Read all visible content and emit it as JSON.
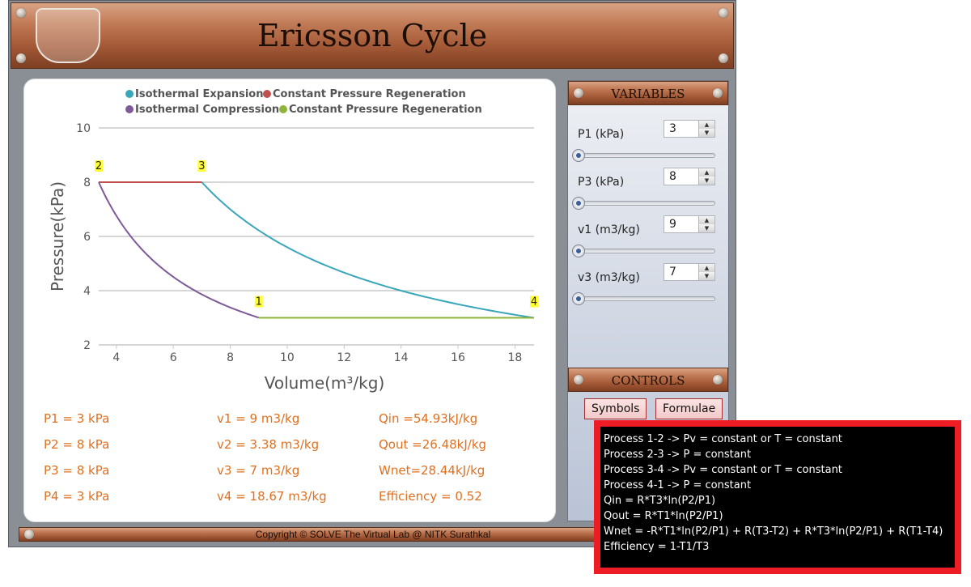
{
  "header": {
    "title": "Ericsson Cycle"
  },
  "chart_data": {
    "type": "line",
    "xlabel": "Volume(m³/kg)",
    "ylabel": "Pressure(kPa)",
    "xlim": [
      3.38,
      18.67
    ],
    "ylim": [
      2,
      10
    ],
    "x_ticks": [
      "4",
      "6",
      "8",
      "10",
      "12",
      "14",
      "16",
      "18"
    ],
    "y_ticks": [
      "2",
      "4",
      "6",
      "8",
      "10"
    ],
    "grid": "horizontal",
    "legend_position": "top",
    "series": [
      {
        "name": "Isothermal Expansion",
        "color": "#3aa6b9",
        "curve": "isotherm",
        "points": [
          [
            7,
            8
          ],
          [
            18.67,
            3
          ]
        ]
      },
      {
        "name": "Constant Pressure Regeneration",
        "color": "#c0504d",
        "curve": "line",
        "points": [
          [
            3.38,
            8
          ],
          [
            7,
            8
          ]
        ]
      },
      {
        "name": "Isothermal Compression",
        "color": "#7e5a99",
        "curve": "isotherm",
        "points": [
          [
            3.38,
            8
          ],
          [
            9,
            3
          ]
        ]
      },
      {
        "name": "Constant Pressure Regeneration",
        "color": "#8db53a",
        "curve": "line",
        "points": [
          [
            9,
            3
          ],
          [
            18.67,
            3
          ]
        ]
      }
    ],
    "point_labels": [
      {
        "text": "1",
        "x": 9,
        "y": 3
      },
      {
        "text": "2",
        "x": 3.38,
        "y": 8
      },
      {
        "text": "3",
        "x": 7,
        "y": 8
      },
      {
        "text": "4",
        "x": 18.67,
        "y": 3
      }
    ]
  },
  "results": {
    "p1": "P1 = 3 kPa",
    "p2": "P2 = 8 kPa",
    "p3": "P3 = 8 kPa",
    "p4": "P4 = 3 kPa",
    "v1": "v1 = 9 m3/kg",
    "v2": "v2 = 3.38 m3/kg",
    "v3": "v3 = 7 m3/kg",
    "v4": "v4 = 18.67 m3/kg",
    "qin": "Qin =54.93kJ/kg",
    "qout": "Qout =26.48kJ/kg",
    "wnet": "Wnet=28.44kJ/kg",
    "efficiency": "Efficiency = 0.52"
  },
  "variables": {
    "heading": "VARIABLES",
    "items": [
      {
        "label": "P1 (kPa)",
        "value": "3",
        "slider_fraction": 0
      },
      {
        "label": "P3 (kPa)",
        "value": "8",
        "slider_fraction": 0
      },
      {
        "label": "v1 (m3/kg)",
        "value": "9",
        "slider_fraction": 0
      },
      {
        "label": "v3 (m3/kg)",
        "value": "7",
        "slider_fraction": 0
      }
    ]
  },
  "controls": {
    "heading": "CONTROLS",
    "symbols_label": "Symbols",
    "formulae_label": "Formulae"
  },
  "footer": {
    "copyright": "Copyright © SOLVE The Virtual Lab @ NITK Surathkal"
  },
  "formulae": {
    "lines": [
      "Process 1-2 -> Pv = constant or T = constant",
      "Process 2-3 -> P = constant",
      "Process 3-4 -> Pv = constant or T = constant",
      "Process 4-1 -> P = constant",
      "Qin = R*T3*ln(P2/P1)",
      "Qout = R*T1*ln(P2/P1)",
      "Wnet = -R*T1*ln(P2/P1) + R(T3-T2) + R*T3*ln(P2/P1) + R(T1-T4)",
      "Efficiency = 1-T1/T3"
    ]
  },
  "colors": {
    "result_text": "#e07020",
    "popup_border": "#ee1c25"
  }
}
